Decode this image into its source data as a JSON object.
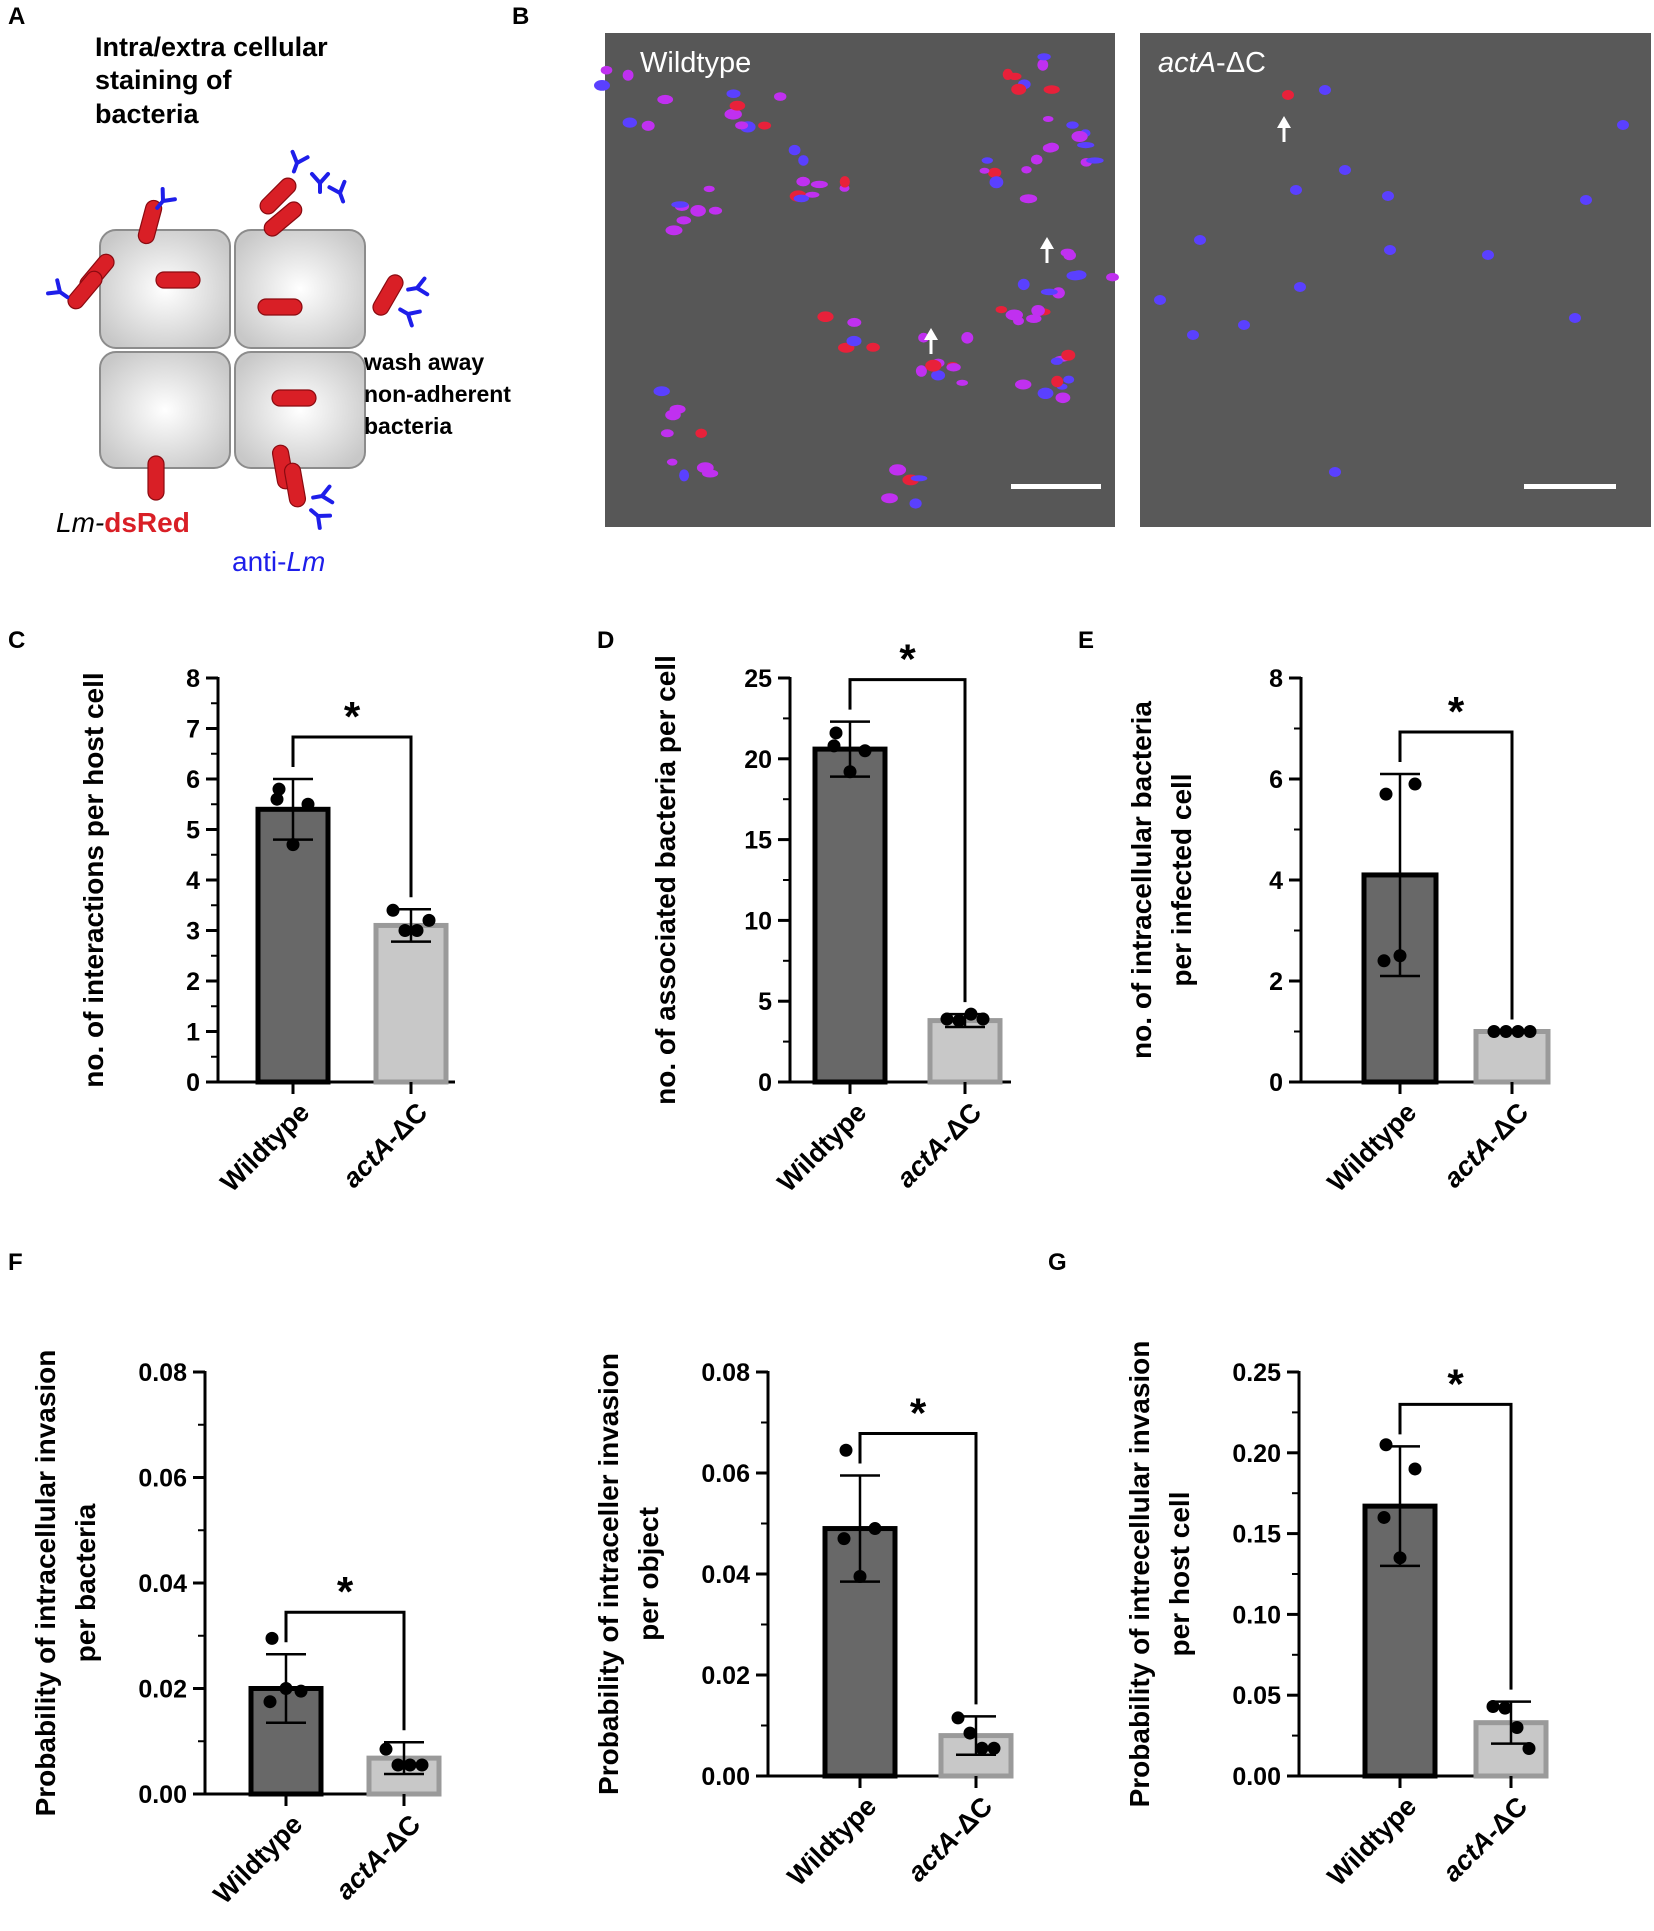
{
  "panel_labels": {
    "a": "A",
    "b": "B",
    "c": "C",
    "d": "D",
    "e": "E",
    "f": "F",
    "g": "G"
  },
  "schematic": {
    "title_lines": [
      "Intra/extra cellular",
      "staining of",
      "bacteria"
    ],
    "wash_lines": [
      "wash away",
      "non-adherent",
      "bacteria"
    ],
    "strain_label": {
      "pre": "Lm-",
      "highlight": "dsRed"
    },
    "antibody_label": {
      "pre": "anti-",
      "italic": "Lm"
    },
    "colors": {
      "bacteria": "#d91f26",
      "antibody": "#1e1eea",
      "cell_fill": "#e6e6e6",
      "cell_stroke": "#8c8c8c"
    }
  },
  "micrographs": {
    "left_label": "Wildtype",
    "right_label_italic": "actA",
    "right_label_rest": "-ΔC",
    "background": "#5a5a5a",
    "colors": {
      "intracellular": "#e8213a",
      "extracellular": "#c030f0",
      "antibody_only": "#5a40ff",
      "arrow": "#ffffff",
      "scale_bar": "#ffffff"
    }
  },
  "chart_data": [
    {
      "panel": "C",
      "type": "bar",
      "categories": [
        "Wildtype",
        "actA-ΔC"
      ],
      "values": [
        5.4,
        3.1
      ],
      "error": [
        0.6,
        0.32
      ],
      "points": [
        [
          5.8,
          5.5,
          5.6,
          4.7
        ],
        [
          3.4,
          3.0,
          3.0,
          3.2
        ]
      ],
      "ylabel": [
        "no. of interactions per host cell"
      ],
      "ylim": [
        0,
        8
      ],
      "yticks": [
        "0",
        "1",
        "2",
        "3",
        "4",
        "5",
        "6",
        "7",
        "8"
      ],
      "significance": "*",
      "bar_colors": [
        "#686868",
        "#c8c8c8"
      ],
      "bar_edges": [
        "#000000",
        "#9a9a9a"
      ]
    },
    {
      "panel": "D",
      "type": "bar",
      "categories": [
        "Wildtype",
        "actA-ΔC"
      ],
      "values": [
        20.6,
        3.8
      ],
      "error": [
        1.7,
        0.4
      ],
      "points": [
        [
          21.6,
          20.5,
          20.8,
          19.2
        ],
        [
          3.9,
          3.8,
          4.2,
          3.9
        ]
      ],
      "ylabel": [
        "no. of associated bacteria per cell"
      ],
      "ylim": [
        0,
        25
      ],
      "yticks": [
        "0",
        "5",
        "10",
        "15",
        "20",
        "25"
      ],
      "significance": "*",
      "bar_colors": [
        "#686868",
        "#c8c8c8"
      ],
      "bar_edges": [
        "#000000",
        "#9a9a9a"
      ]
    },
    {
      "panel": "E",
      "type": "bar",
      "categories": [
        "Wildtype",
        "actA-ΔC"
      ],
      "values": [
        4.1,
        1.0
      ],
      "error": [
        2.0,
        0
      ],
      "points": [
        [
          5.7,
          5.9,
          2.4,
          2.5
        ],
        [
          1.0,
          1.0,
          1.0,
          1.0
        ]
      ],
      "ylabel": [
        "no. of  intracellular bacteria",
        "per infected cell"
      ],
      "ylim": [
        0,
        8
      ],
      "yticks": [
        "0",
        "2",
        "4",
        "6",
        "8"
      ],
      "significance": "*",
      "bar_colors": [
        "#686868",
        "#c8c8c8"
      ],
      "bar_edges": [
        "#000000",
        "#9a9a9a"
      ]
    },
    {
      "panel": "F",
      "type": "bar",
      "categories": [
        "Wildtype",
        "actA-ΔC"
      ],
      "values": [
        0.02,
        0.0068
      ],
      "error": [
        0.0065,
        0.003
      ],
      "points": [
        [
          0.0295,
          0.0195,
          0.0175,
          0.02
        ],
        [
          0.0085,
          0.0055,
          0.0055,
          0.0055
        ]
      ],
      "ylabel": [
        "Probability of intracellular invasion",
        "per bacteria"
      ],
      "ylim": [
        0,
        0.08
      ],
      "yticks": [
        "0.00",
        "0.02",
        "0.04",
        "0.06",
        "0.08"
      ],
      "significance": "*",
      "bar_colors": [
        "#686868",
        "#c8c8c8"
      ],
      "bar_edges": [
        "#000000",
        "#9a9a9a"
      ]
    },
    {
      "panel": "F2",
      "type": "bar",
      "categories": [
        "Wildtype",
        "actA-ΔC"
      ],
      "values": [
        0.049,
        0.008
      ],
      "error": [
        0.0105,
        0.0038
      ],
      "points": [
        [
          0.0645,
          0.049,
          0.047,
          0.0395
        ],
        [
          0.0115,
          0.0085,
          0.0055,
          0.0055
        ]
      ],
      "ylabel": [
        "Probability of intraceller invasion",
        "per object"
      ],
      "ylim": [
        0,
        0.08
      ],
      "yticks": [
        "0.00",
        "0.02",
        "0.04",
        "0.06",
        "0.08"
      ],
      "significance": "*",
      "bar_colors": [
        "#686868",
        "#c8c8c8"
      ],
      "bar_edges": [
        "#000000",
        "#9a9a9a"
      ]
    },
    {
      "panel": "G",
      "type": "bar",
      "categories": [
        "Wildtype",
        "actA-ΔC"
      ],
      "values": [
        0.167,
        0.033
      ],
      "error": [
        0.037,
        0.013
      ],
      "points": [
        [
          0.205,
          0.19,
          0.16,
          0.135
        ],
        [
          0.043,
          0.042,
          0.03,
          0.017
        ]
      ],
      "ylabel": [
        "Probability of intrecellular invasion",
        "per host cell"
      ],
      "ylim": [
        0,
        0.25
      ],
      "yticks": [
        "0.00",
        "0.05",
        "0.10",
        "0.15",
        "0.20",
        "0.25"
      ],
      "significance": "*",
      "bar_colors": [
        "#686868",
        "#c8c8c8"
      ],
      "bar_edges": [
        "#000000",
        "#9a9a9a"
      ]
    }
  ]
}
